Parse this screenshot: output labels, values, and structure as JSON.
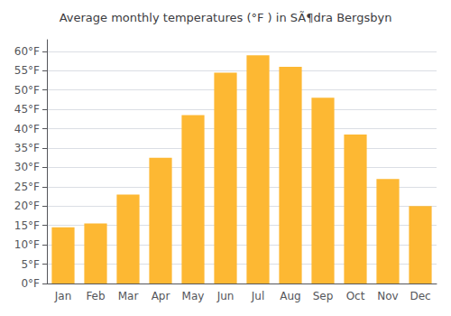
{
  "chart_data": {
    "type": "bar",
    "title": "Average monthly temperatures (°F ) in SÃ¶dra Bergsbyn",
    "categories": [
      "Jan",
      "Feb",
      "Mar",
      "Apr",
      "May",
      "Jun",
      "Jul",
      "Aug",
      "Sep",
      "Oct",
      "Nov",
      "Dec"
    ],
    "values": [
      14.5,
      15.5,
      23.0,
      32.5,
      43.5,
      54.5,
      59.0,
      56.0,
      48.0,
      38.5,
      27.0,
      20.0
    ],
    "color": "#FDB833",
    "ylim": [
      0,
      63
    ],
    "yticks": [
      {
        "value": 0,
        "label": "0°F"
      },
      {
        "value": 5,
        "label": "5°F"
      },
      {
        "value": 10,
        "label": "10°F"
      },
      {
        "value": 15,
        "label": "15°F"
      },
      {
        "value": 20,
        "label": "20°F"
      },
      {
        "value": 25,
        "label": "25°F"
      },
      {
        "value": 30,
        "label": "30°F"
      },
      {
        "value": 35,
        "label": "35°F"
      },
      {
        "value": 40,
        "label": "40°F"
      },
      {
        "value": 45,
        "label": "45°F"
      },
      {
        "value": 50,
        "label": "50°F"
      },
      {
        "value": 55,
        "label": "55°F"
      },
      {
        "value": 60,
        "label": "60°F"
      }
    ],
    "grid": true
  }
}
